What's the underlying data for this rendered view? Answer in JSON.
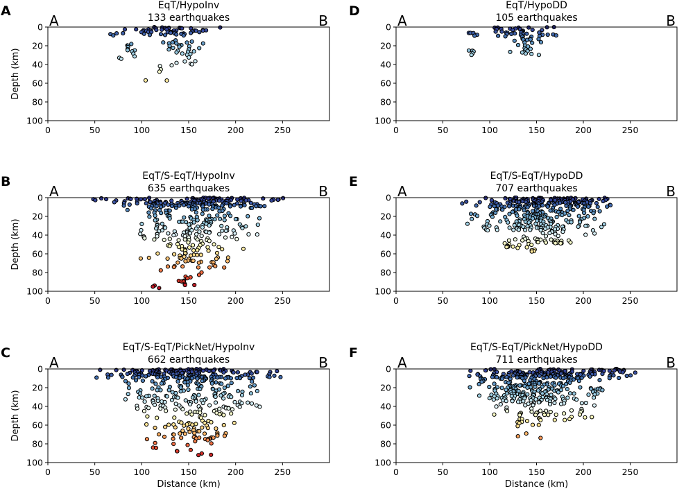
{
  "chart_data": [
    {
      "type": "scatter",
      "panel_letter": "A",
      "title_line1": "EqT/HypoInv",
      "title_line2": "133 earthquakes",
      "left_endpoint": "A",
      "right_endpoint": "B",
      "xlabel": "",
      "ylabel": "Depth (km)",
      "xlim": [
        0,
        300
      ],
      "ylim": [
        100,
        0
      ],
      "xticks": [
        0,
        50,
        100,
        150,
        200,
        250
      ],
      "yticks": [
        0,
        20,
        40,
        60,
        80,
        100
      ],
      "seed": 11,
      "color_scale": [
        0,
        100
      ],
      "clusters": [
        {
          "n": 55,
          "x": [
            60,
            190
          ],
          "y": [
            0,
            9
          ]
        },
        {
          "n": 12,
          "x": [
            72,
            100
          ],
          "y": [
            18,
            36
          ]
        },
        {
          "n": 30,
          "x": [
            115,
            170
          ],
          "y": [
            14,
            40
          ]
        },
        {
          "n": 6,
          "x": [
            100,
            145
          ],
          "y": [
            40,
            58
          ]
        }
      ]
    },
    {
      "type": "scatter",
      "panel_letter": "D",
      "title_line1": "EqT/HypoDD",
      "title_line2": "105 earthquakes",
      "left_endpoint": "A",
      "right_endpoint": "B",
      "xlabel": "",
      "ylabel": "",
      "xlim": [
        0,
        300
      ],
      "ylim": [
        100,
        0
      ],
      "xticks": [
        0,
        50,
        100,
        150,
        200,
        250
      ],
      "yticks": [
        0,
        20,
        40,
        60,
        80,
        100
      ],
      "seed": 23,
      "color_scale": [
        0,
        100
      ],
      "clusters": [
        {
          "n": 45,
          "x": [
            70,
            188
          ],
          "y": [
            0,
            10
          ]
        },
        {
          "n": 25,
          "x": [
            115,
            165
          ],
          "y": [
            10,
            30
          ]
        },
        {
          "n": 5,
          "x": [
            75,
            85
          ],
          "y": [
            25,
            30
          ]
        }
      ]
    },
    {
      "type": "scatter",
      "panel_letter": "B",
      "title_line1": "EqT/S-EqT/HypoInv",
      "title_line2": "635 earthquakes",
      "left_endpoint": "A",
      "right_endpoint": "B",
      "xlabel": "",
      "ylabel": "Depth (km)",
      "xlim": [
        0,
        300
      ],
      "ylim": [
        100,
        0
      ],
      "xticks": [
        0,
        50,
        100,
        150,
        200,
        250
      ],
      "yticks": [
        0,
        20,
        40,
        60,
        80,
        100
      ],
      "seed": 37,
      "color_scale": [
        0,
        100
      ],
      "clusters": [
        {
          "n": 160,
          "x": [
            45,
            262
          ],
          "y": [
            0,
            10
          ]
        },
        {
          "n": 140,
          "x": [
            75,
            235
          ],
          "y": [
            10,
            45
          ]
        },
        {
          "n": 70,
          "x": [
            95,
            210
          ],
          "y": [
            45,
            75
          ]
        },
        {
          "n": 16,
          "x": [
            100,
            180
          ],
          "y": [
            75,
            97
          ]
        }
      ]
    },
    {
      "type": "scatter",
      "panel_letter": "E",
      "title_line1": "EqT/S-EqT/HypoDD",
      "title_line2": "707 earthquakes",
      "left_endpoint": "A",
      "right_endpoint": "B",
      "xlabel": "",
      "ylabel": "",
      "xlim": [
        0,
        300
      ],
      "ylim": [
        100,
        0
      ],
      "xticks": [
        0,
        50,
        100,
        150,
        200,
        250
      ],
      "yticks": [
        0,
        20,
        40,
        60,
        80,
        100
      ],
      "seed": 41,
      "color_scale": [
        0,
        100
      ],
      "clusters": [
        {
          "n": 160,
          "x": [
            68,
            250
          ],
          "y": [
            0,
            10
          ]
        },
        {
          "n": 170,
          "x": [
            75,
            225
          ],
          "y": [
            10,
            35
          ]
        },
        {
          "n": 50,
          "x": [
            95,
            220
          ],
          "y": [
            35,
            55
          ]
        },
        {
          "n": 4,
          "x": [
            140,
            150
          ],
          "y": [
            55,
            59
          ]
        }
      ]
    },
    {
      "type": "scatter",
      "panel_letter": "C",
      "title_line1": "EqT/S-EqT/PickNet/HypoInv",
      "title_line2": "662 earthquakes",
      "left_endpoint": "A",
      "right_endpoint": "B",
      "xlabel": "Distance (km)",
      "ylabel": "Depth (km)",
      "xlim": [
        0,
        300
      ],
      "ylim": [
        100,
        0
      ],
      "xticks": [
        0,
        50,
        100,
        150,
        200,
        250
      ],
      "yticks": [
        0,
        20,
        40,
        60,
        80,
        100
      ],
      "seed": 53,
      "color_scale": [
        0,
        100
      ],
      "clusters": [
        {
          "n": 160,
          "x": [
            45,
            262
          ],
          "y": [
            0,
            10
          ]
        },
        {
          "n": 160,
          "x": [
            65,
            235
          ],
          "y": [
            10,
            45
          ]
        },
        {
          "n": 75,
          "x": [
            95,
            215
          ],
          "y": [
            45,
            75
          ]
        },
        {
          "n": 14,
          "x": [
            100,
            185
          ],
          "y": [
            75,
            97
          ]
        }
      ]
    },
    {
      "type": "scatter",
      "panel_letter": "F",
      "title_line1": "EqT/S-EqT/PickNet/HypoDD",
      "title_line2": "711 earthquakes",
      "left_endpoint": "A",
      "right_endpoint": "B",
      "xlabel": "Distance (km)",
      "ylabel": "",
      "xlim": [
        0,
        300
      ],
      "ylim": [
        100,
        0
      ],
      "xticks": [
        0,
        50,
        100,
        150,
        200,
        250
      ],
      "yticks": [
        0,
        20,
        40,
        60,
        80,
        100
      ],
      "seed": 67,
      "color_scale": [
        0,
        100
      ],
      "clusters": [
        {
          "n": 165,
          "x": [
            68,
            268
          ],
          "y": [
            0,
            10
          ]
        },
        {
          "n": 175,
          "x": [
            75,
            225
          ],
          "y": [
            10,
            35
          ]
        },
        {
          "n": 55,
          "x": [
            95,
            220
          ],
          "y": [
            35,
            55
          ]
        },
        {
          "n": 10,
          "x": [
            115,
            160
          ],
          "y": [
            55,
            77
          ]
        }
      ]
    }
  ]
}
